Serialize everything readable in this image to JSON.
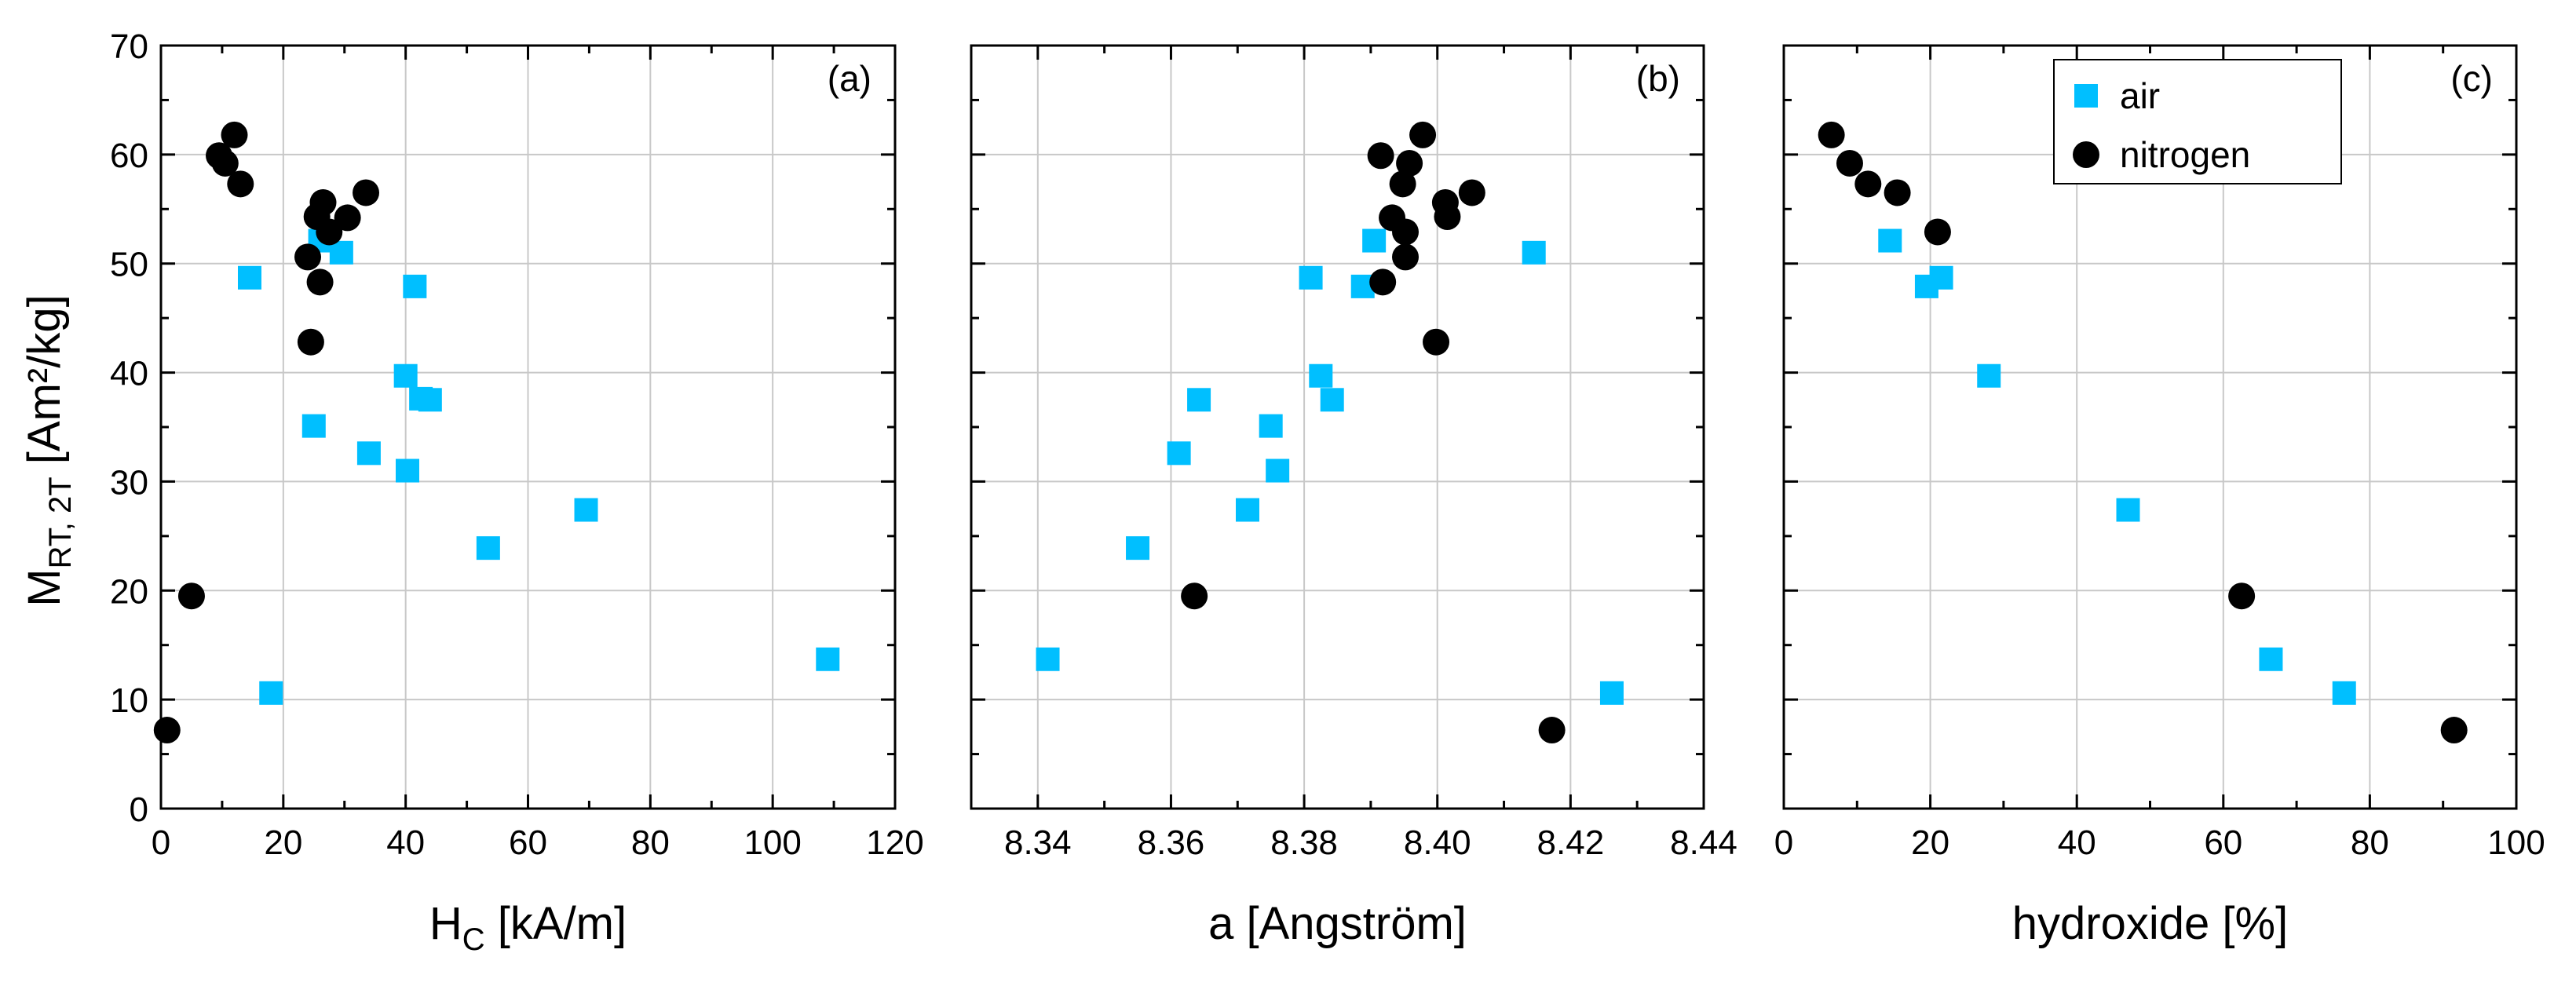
{
  "figure": {
    "ylabel_main": "M",
    "ylabel_sub": "RT, 2T",
    "ylabel_rest": " [Am²/kg]",
    "legend": {
      "position": "top-right",
      "entries": [
        "air",
        "nitrogen"
      ]
    },
    "colors": {
      "air": "#00bfff",
      "nitrogen": "#000000",
      "grid": "#c8c8c8"
    }
  },
  "chart_data": [
    {
      "type": "scatter",
      "panel_label": "(a)",
      "xlabel_main": "H",
      "xlabel_sub": "C",
      "xlabel_rest": " [kA/m]",
      "ylabel": "M RT, 2T [Am²/kg]",
      "xlim": [
        0,
        120
      ],
      "ylim": [
        0,
        70
      ],
      "xticks": [
        0,
        20,
        40,
        60,
        80,
        100,
        120
      ],
      "xtick_labels": [
        "0",
        "20",
        "40",
        "60",
        "80",
        "100",
        "120"
      ],
      "yticks": [
        0,
        10,
        20,
        30,
        40,
        50,
        60,
        70
      ],
      "ytick_labels": [
        "0",
        "10",
        "20",
        "30",
        "40",
        "50",
        "60",
        "70"
      ],
      "series": [
        {
          "name": "air",
          "marker": "square",
          "points": [
            [
              14.5,
              48.7
            ],
            [
              18,
              10.6
            ],
            [
              25,
              35.1
            ],
            [
              26,
              52.1
            ],
            [
              29.5,
              51
            ],
            [
              34,
              32.6
            ],
            [
              40,
              39.7
            ],
            [
              40.3,
              31
            ],
            [
              41.5,
              47.9
            ],
            [
              42.5,
              37.6
            ],
            [
              44,
              37.5
            ],
            [
              53.5,
              23.9
            ],
            [
              69.5,
              27.4
            ],
            [
              109,
              13.7
            ]
          ]
        },
        {
          "name": "nitrogen",
          "marker": "circle",
          "points": [
            [
              1,
              7.2
            ],
            [
              5,
              19.5
            ],
            [
              9.5,
              59.9
            ],
            [
              10.5,
              59.2
            ],
            [
              12,
              61.8
            ],
            [
              13,
              57.3
            ],
            [
              24,
              50.6
            ],
            [
              24.5,
              42.8
            ],
            [
              25.5,
              54.3
            ],
            [
              26,
              48.3
            ],
            [
              26.5,
              55.6
            ],
            [
              27.5,
              52.9
            ],
            [
              30.5,
              54.2
            ],
            [
              33.5,
              56.5
            ]
          ]
        }
      ]
    },
    {
      "type": "scatter",
      "panel_label": "(b)",
      "xlabel_main": "a [Angström]",
      "xlabel_sub": "",
      "xlabel_rest": "",
      "xlim": [
        8.33,
        8.44
      ],
      "ylim": [
        0,
        70
      ],
      "xticks": [
        8.34,
        8.36,
        8.38,
        8.4,
        8.42,
        8.44
      ],
      "xtick_labels": [
        "8.34",
        "8.36",
        "8.38",
        "8.40",
        "8.42",
        "8.44"
      ],
      "yticks": [
        0,
        10,
        20,
        30,
        40,
        50,
        60,
        70
      ],
      "series": [
        {
          "name": "air",
          "marker": "square",
          "points": [
            [
              8.3415,
              13.7
            ],
            [
              8.355,
              23.9
            ],
            [
              8.3612,
              32.6
            ],
            [
              8.3642,
              37.5
            ],
            [
              8.3715,
              27.4
            ],
            [
              8.375,
              35.1
            ],
            [
              8.376,
              31
            ],
            [
              8.381,
              48.7
            ],
            [
              8.3825,
              39.7
            ],
            [
              8.3842,
              37.5
            ],
            [
              8.3888,
              47.9
            ],
            [
              8.3905,
              52.1
            ],
            [
              8.4145,
              51
            ],
            [
              8.4262,
              10.6
            ]
          ]
        },
        {
          "name": "nitrogen",
          "marker": "circle",
          "points": [
            [
              8.3635,
              19.5
            ],
            [
              8.3915,
              59.9
            ],
            [
              8.3918,
              48.3
            ],
            [
              8.3932,
              54.2
            ],
            [
              8.3948,
              57.3
            ],
            [
              8.3952,
              52.9
            ],
            [
              8.3952,
              50.6
            ],
            [
              8.3958,
              59.2
            ],
            [
              8.3978,
              61.8
            ],
            [
              8.3998,
              42.8
            ],
            [
              8.4012,
              55.6
            ],
            [
              8.4015,
              54.3
            ],
            [
              8.4052,
              56.5
            ],
            [
              8.4172,
              7.2
            ]
          ]
        }
      ]
    },
    {
      "type": "scatter",
      "panel_label": "(c)",
      "xlabel_main": "hydroxide [%]",
      "xlabel_sub": "",
      "xlabel_rest": "",
      "xlim": [
        0,
        100
      ],
      "ylim": [
        0,
        70
      ],
      "xticks": [
        0,
        20,
        40,
        60,
        80,
        100
      ],
      "xtick_labels": [
        "0",
        "20",
        "40",
        "60",
        "80",
        "100"
      ],
      "yticks": [
        0,
        10,
        20,
        30,
        40,
        50,
        60,
        70
      ],
      "series": [
        {
          "name": "air",
          "marker": "square",
          "points": [
            [
              14.5,
              52.1
            ],
            [
              19.5,
              47.9
            ],
            [
              21.5,
              48.7
            ],
            [
              28,
              39.7
            ],
            [
              47,
              27.4
            ],
            [
              66.5,
              13.7
            ],
            [
              76.5,
              10.6
            ]
          ]
        },
        {
          "name": "nitrogen",
          "marker": "circle",
          "points": [
            [
              6.5,
              61.8
            ],
            [
              9,
              59.2
            ],
            [
              11.5,
              57.3
            ],
            [
              15.5,
              56.5
            ],
            [
              21,
              52.9
            ],
            [
              62.5,
              19.5
            ],
            [
              91.5,
              7.2
            ]
          ]
        }
      ]
    }
  ]
}
